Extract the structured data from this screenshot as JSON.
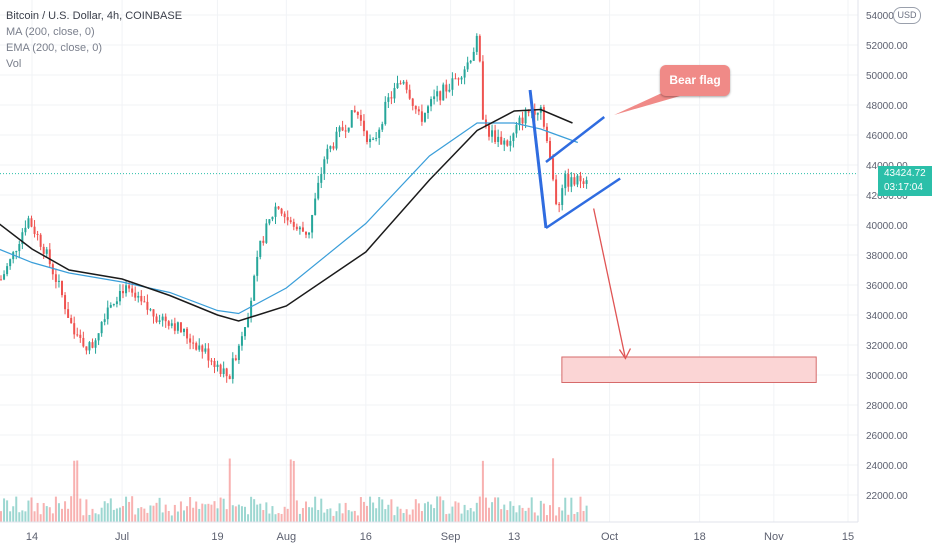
{
  "legend": {
    "symbol": "Bitcoin / U.S. Dollar, 4h, COINBASE",
    "ma": "MA (200, close, 0)",
    "ema": "EMA (200, close, 0)",
    "vol": "Vol"
  },
  "annotation": {
    "label": "Bear flag"
  },
  "axis": {
    "currency": "USD"
  },
  "last_price": {
    "value": "43424.72",
    "countdown": "03:17:04"
  },
  "chart_data": {
    "type": "candlestick",
    "symbol": "BTCUSD",
    "timeframe": "4h",
    "exchange": "COINBASE",
    "ylim": [
      20500,
      54500
    ],
    "yticks": [
      22000,
      24000,
      26000,
      28000,
      30000,
      32000,
      34000,
      36000,
      38000,
      40000,
      42000,
      44000,
      46000,
      48000,
      50000,
      52000,
      54000
    ],
    "ytick_labels": [
      "22000.00",
      "24000.00",
      "26000.00",
      "28000.00",
      "30000.00",
      "32000.00",
      "34000.00",
      "36000.00",
      "38000.00",
      "40000.00",
      "42000.00",
      "44000.00",
      "46000.00",
      "48000.00",
      "50000.00",
      "52000.00",
      "54000.00"
    ],
    "xticks": [
      {
        "label": "14",
        "date": "2021-06-14"
      },
      {
        "label": "Jul",
        "date": "2021-07-01"
      },
      {
        "label": "19",
        "date": "2021-07-19"
      },
      {
        "label": "Aug",
        "date": "2021-08-01"
      },
      {
        "label": "16",
        "date": "2021-08-16"
      },
      {
        "label": "Sep",
        "date": "2021-09-01"
      },
      {
        "label": "13",
        "date": "2021-09-13"
      },
      {
        "label": "Oct",
        "date": "2021-10-01"
      },
      {
        "label": "18",
        "date": "2021-10-18"
      },
      {
        "label": "Nov",
        "date": "2021-11-01"
      },
      {
        "label": "15",
        "date": "2021-11-15"
      }
    ],
    "last_price": 43424.72,
    "price_path": [
      [
        "2021-06-07",
        35700
      ],
      [
        "2021-06-10",
        37800
      ],
      [
        "2021-06-13",
        40500
      ],
      [
        "2021-06-16",
        38500
      ],
      [
        "2021-06-19",
        35800
      ],
      [
        "2021-06-22",
        32500
      ],
      [
        "2021-06-25",
        31800
      ],
      [
        "2021-06-28",
        34600
      ],
      [
        "2021-07-01",
        35800
      ],
      [
        "2021-07-04",
        34800
      ],
      [
        "2021-07-07",
        34000
      ],
      [
        "2021-07-10",
        33600
      ],
      [
        "2021-07-13",
        32600
      ],
      [
        "2021-07-16",
        31700
      ],
      [
        "2021-07-19",
        30600
      ],
      [
        "2021-07-21",
        29800
      ],
      [
        "2021-07-23",
        32300
      ],
      [
        "2021-07-25",
        34800
      ],
      [
        "2021-07-27",
        38800
      ],
      [
        "2021-07-30",
        41400
      ],
      [
        "2021-08-02",
        39800
      ],
      [
        "2021-08-05",
        39500
      ],
      [
        "2021-08-08",
        44500
      ],
      [
        "2021-08-11",
        46200
      ],
      [
        "2021-08-14",
        47600
      ],
      [
        "2021-08-17",
        45200
      ],
      [
        "2021-08-20",
        48300
      ],
      [
        "2021-08-23",
        49800
      ],
      [
        "2021-08-26",
        47000
      ],
      [
        "2021-08-29",
        48500
      ],
      [
        "2021-09-01",
        49400
      ],
      [
        "2021-09-04",
        50800
      ],
      [
        "2021-09-06",
        52400
      ],
      [
        "2021-09-07",
        46900
      ],
      [
        "2021-09-08",
        46200
      ],
      [
        "2021-09-10",
        45700
      ],
      [
        "2021-09-12",
        45400
      ],
      [
        "2021-09-14",
        47000
      ],
      [
        "2021-09-16",
        47700
      ],
      [
        "2021-09-18",
        47900
      ],
      [
        "2021-09-20",
        43200
      ],
      [
        "2021-09-21",
        41000
      ],
      [
        "2021-09-22",
        43000
      ],
      [
        "2021-09-24",
        42800
      ],
      [
        "2021-09-26",
        43200
      ],
      [
        "2021-09-27",
        43424.72
      ]
    ],
    "ma_200": [
      [
        "2021-06-07",
        40300
      ],
      [
        "2021-06-14",
        38400
      ],
      [
        "2021-06-21",
        37000
      ],
      [
        "2021-07-01",
        36400
      ],
      [
        "2021-07-10",
        35300
      ],
      [
        "2021-07-19",
        34000
      ],
      [
        "2021-07-23",
        33600
      ],
      [
        "2021-08-01",
        34600
      ],
      [
        "2021-08-16",
        38200
      ],
      [
        "2021-08-28",
        43000
      ],
      [
        "2021-09-06",
        46300
      ],
      [
        "2021-09-13",
        47600
      ],
      [
        "2021-09-18",
        47700
      ],
      [
        "2021-09-24",
        46800
      ]
    ],
    "ema_200": [
      [
        "2021-06-07",
        38500
      ],
      [
        "2021-06-14",
        37500
      ],
      [
        "2021-06-21",
        36800
      ],
      [
        "2021-07-01",
        36200
      ],
      [
        "2021-07-10",
        35500
      ],
      [
        "2021-07-19",
        34300
      ],
      [
        "2021-07-23",
        34100
      ],
      [
        "2021-08-01",
        35800
      ],
      [
        "2021-08-16",
        40100
      ],
      [
        "2021-08-28",
        44600
      ],
      [
        "2021-09-06",
        46800
      ],
      [
        "2021-09-13",
        46800
      ],
      [
        "2021-09-18",
        46400
      ],
      [
        "2021-09-25",
        45500
      ]
    ],
    "volume_spikes": [
      "2021-06-22",
      "2021-07-21",
      "2021-08-02",
      "2021-09-07",
      "2021-09-20"
    ],
    "drawings": {
      "flag_pole": [
        [
          "2021-09-16",
          49000
        ],
        [
          "2021-09-19",
          39800
        ]
      ],
      "channel_upper": [
        [
          "2021-09-19",
          44200
        ],
        [
          "2021-09-30",
          47200
        ]
      ],
      "channel_lower": [
        [
          "2021-09-19",
          39800
        ],
        [
          "2021-10-03",
          43100
        ]
      ],
      "target_arrow": [
        [
          "2021-09-28",
          41100
        ],
        [
          "2021-10-04",
          31100
        ]
      ],
      "target_zone": {
        "from": "2021-09-22",
        "to": "2021-11-09",
        "y_min": 29500,
        "y_max": 31200
      }
    }
  }
}
